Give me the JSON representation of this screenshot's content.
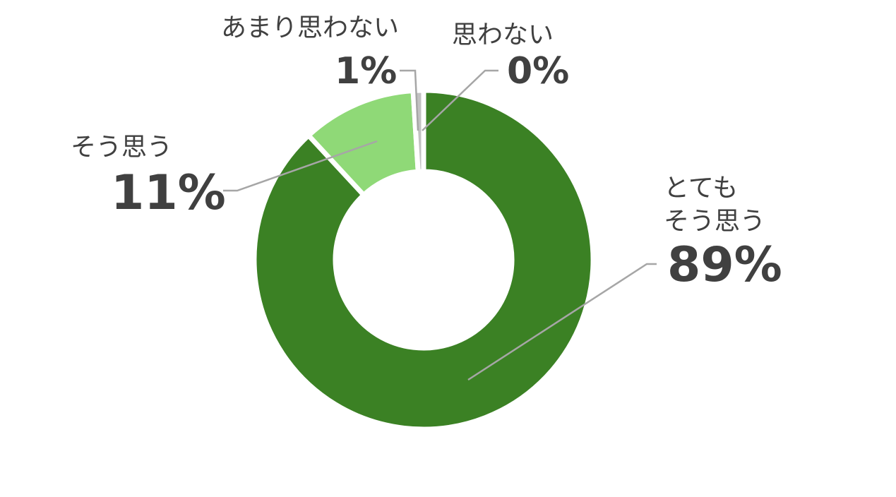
{
  "chart_data": {
    "type": "pie",
    "variant": "donut",
    "categories": [
      "とても そう思う",
      "そう思う",
      "あまり思わない",
      "思わない"
    ],
    "category_lines": [
      [
        "とても",
        "そう思う"
      ],
      [
        "そう思う"
      ],
      [
        "あまり思わない"
      ],
      [
        "思わない"
      ]
    ],
    "values": [
      89,
      11,
      1,
      0
    ],
    "value_labels": [
      "89%",
      "11%",
      "1%",
      "0%"
    ],
    "colors": [
      "#3b8124",
      "#8fd977",
      "#c2c2c2",
      "#7a7a7a"
    ],
    "slice_separator_color": "#ffffff",
    "leader_line_color": "#a6a6a6",
    "label_color": "#404040",
    "legend": "none",
    "start_angle_deg": 0,
    "direction": "clockwise"
  }
}
